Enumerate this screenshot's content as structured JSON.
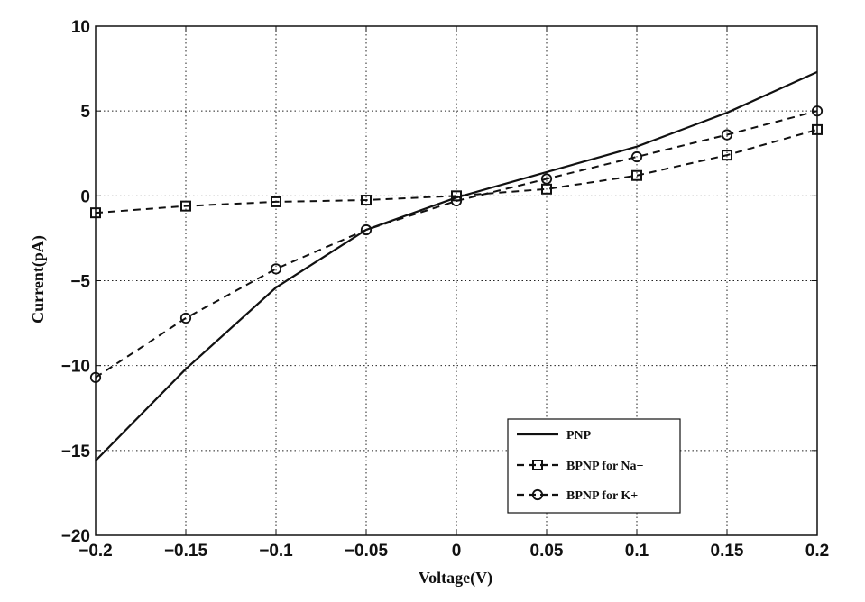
{
  "chart_data": {
    "type": "line",
    "xlabel": "Voltage(V)",
    "ylabel": "Current(pA)",
    "xlim": [
      -0.2,
      0.2
    ],
    "ylim": [
      -20,
      10
    ],
    "xticks": [
      -0.2,
      -0.15,
      -0.1,
      -0.05,
      0,
      0.05,
      0.1,
      0.15,
      0.2
    ],
    "yticks": [
      10,
      5,
      0,
      -5,
      -10,
      -15,
      -20
    ],
    "xtick_labels": [
      "-0.2",
      "-0.15",
      "-0.1",
      "-0.05",
      "0",
      "0.05",
      "0.1",
      "0.15",
      "0.2"
    ],
    "ytick_labels": [
      "10",
      "5",
      "0",
      "-5",
      "-10",
      "-15",
      "-20"
    ],
    "grid": true,
    "legend_position": "bottom-right",
    "series": [
      {
        "name": "PNP",
        "style": "solid",
        "marker": "none",
        "x": [
          -0.2,
          -0.15,
          -0.1,
          -0.05,
          0,
          0.05,
          0.1,
          0.15,
          0.2
        ],
        "y": [
          -15.6,
          -10.2,
          -5.4,
          -2.0,
          -0.1,
          1.4,
          2.9,
          4.9,
          7.3
        ]
      },
      {
        "name": "BPNP for Na+",
        "style": "dashed",
        "marker": "square",
        "x": [
          -0.2,
          -0.15,
          -0.1,
          -0.05,
          0,
          0.05,
          0.1,
          0.15,
          0.2
        ],
        "y": [
          -1.0,
          -0.6,
          -0.35,
          -0.25,
          0.0,
          0.4,
          1.2,
          2.4,
          3.9
        ]
      },
      {
        "name": "BPNP for K+",
        "style": "dashed",
        "marker": "circle",
        "x": [
          -0.2,
          -0.15,
          -0.1,
          -0.05,
          0,
          0.05,
          0.1,
          0.15,
          0.2
        ],
        "y": [
          -10.7,
          -7.2,
          -4.3,
          -2.0,
          -0.3,
          1.0,
          2.3,
          3.6,
          5.0
        ]
      }
    ]
  }
}
